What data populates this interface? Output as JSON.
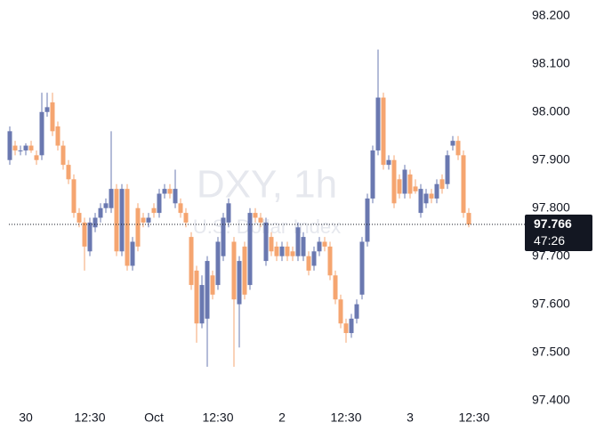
{
  "chart_data": {
    "type": "candlestick",
    "watermark": "DXY, 1h",
    "watermark_subtitle": "U.S. Dollar Index",
    "up_color": "#6a78b0",
    "down_color": "#f5a570",
    "ylim": [
      97.39,
      98.233
    ],
    "yticks": [
      {
        "value": 98.2,
        "label": "98.200"
      },
      {
        "value": 98.1,
        "label": "98.100"
      },
      {
        "value": 98.0,
        "label": "98.000"
      },
      {
        "value": 97.9,
        "label": "97.900"
      },
      {
        "value": 97.8,
        "label": "97.800"
      },
      {
        "value": 97.7,
        "label": "97.700"
      },
      {
        "value": 97.6,
        "label": "97.600"
      },
      {
        "value": 97.5,
        "label": "97.500"
      },
      {
        "value": 97.4,
        "label": "97.400"
      }
    ],
    "last_price": 97.766,
    "countdown": "47:26",
    "categories": [
      null,
      null,
      null,
      "30",
      null,
      null,
      null,
      null,
      null,
      null,
      null,
      null,
      null,
      null,
      null,
      "12:30",
      null,
      null,
      null,
      null,
      null,
      null,
      null,
      null,
      null,
      null,
      null,
      "Oct",
      null,
      null,
      null,
      null,
      null,
      null,
      null,
      null,
      null,
      null,
      null,
      "12:30",
      null,
      null,
      null,
      null,
      null,
      null,
      null,
      null,
      null,
      null,
      null,
      "2",
      null,
      null,
      null,
      null,
      null,
      null,
      null,
      null,
      null,
      null,
      null,
      "12:30",
      null,
      null,
      null,
      null,
      null,
      null,
      null,
      null,
      null,
      null,
      null,
      "3",
      null,
      null,
      null,
      null,
      null,
      null,
      null,
      null,
      null,
      null,
      null,
      "12:30"
    ],
    "open": [
      97.9,
      97.93,
      97.92,
      97.92,
      97.93,
      97.91,
      97.91,
      98.0,
      98.02,
      97.97,
      97.93,
      97.89,
      97.86,
      97.79,
      97.77,
      97.71,
      97.76,
      97.78,
      97.8,
      97.8,
      97.84,
      97.71,
      97.84,
      97.68,
      97.8,
      97.78,
      97.77,
      97.8,
      97.79,
      97.83,
      97.84,
      97.81,
      97.81,
      97.79,
      97.74,
      97.67,
      97.56,
      97.57,
      97.66,
      97.64,
      97.7,
      97.77,
      97.73,
      97.6,
      97.72,
      97.64,
      97.79,
      97.78,
      97.69,
      97.74,
      97.72,
      97.7,
      97.72,
      97.71,
      97.7,
      97.7,
      97.7,
      97.68,
      97.71,
      97.73,
      97.72,
      97.66,
      97.61,
      97.56,
      97.54,
      97.57,
      97.62,
      97.73,
      97.82,
      97.92,
      98.03,
      97.89,
      97.9,
      97.86,
      97.83,
      97.87,
      97.845,
      97.79,
      97.81,
      97.83,
      97.82,
      97.86,
      97.85,
      97.93,
      97.94,
      97.91,
      97.79,
      null
    ],
    "high": [
      97.97,
      97.94,
      97.93,
      97.935,
      97.94,
      97.92,
      98.04,
      98.04,
      98.04,
      97.98,
      97.94,
      97.9,
      97.87,
      97.8,
      97.78,
      97.78,
      97.79,
      97.81,
      97.82,
      97.96,
      97.85,
      97.85,
      97.85,
      97.74,
      97.81,
      97.79,
      97.79,
      97.81,
      97.84,
      97.85,
      97.85,
      97.88,
      97.82,
      97.8,
      97.75,
      97.68,
      97.66,
      97.7,
      97.67,
      97.74,
      97.79,
      97.82,
      97.74,
      97.7,
      97.73,
      97.8,
      97.8,
      97.79,
      97.78,
      97.75,
      97.73,
      97.73,
      97.73,
      97.72,
      97.77,
      97.75,
      97.71,
      97.72,
      97.74,
      97.74,
      97.73,
      97.67,
      97.62,
      97.57,
      97.58,
      97.61,
      97.74,
      97.83,
      97.93,
      98.13,
      98.04,
      97.91,
      97.91,
      97.87,
      97.89,
      97.88,
      97.86,
      97.85,
      97.84,
      97.84,
      97.86,
      97.87,
      97.92,
      97.95,
      97.95,
      97.92,
      97.8,
      null
    ],
    "low": [
      97.89,
      97.91,
      97.91,
      97.91,
      97.915,
      97.89,
      97.9,
      97.99,
      97.95,
      97.92,
      97.88,
      97.85,
      97.78,
      97.76,
      97.67,
      97.7,
      97.75,
      97.77,
      97.79,
      97.79,
      97.7,
      97.7,
      97.67,
      97.67,
      97.71,
      97.76,
      97.76,
      97.78,
      97.78,
      97.82,
      97.82,
      97.8,
      97.78,
      97.76,
      97.63,
      97.52,
      97.55,
      97.47,
      97.61,
      97.63,
      97.69,
      97.76,
      97.47,
      97.51,
      97.61,
      97.63,
      97.77,
      97.76,
      97.68,
      97.7,
      97.69,
      97.69,
      97.69,
      97.69,
      97.69,
      97.69,
      97.66,
      97.67,
      97.7,
      97.71,
      97.65,
      97.6,
      97.55,
      97.52,
      97.53,
      97.56,
      97.61,
      97.72,
      97.81,
      97.91,
      97.88,
      97.88,
      97.8,
      97.82,
      97.82,
      97.82,
      97.83,
      97.78,
      97.8,
      97.81,
      97.81,
      97.83,
      97.84,
      97.92,
      97.9,
      97.78,
      97.76,
      null
    ],
    "close": [
      97.96,
      97.92,
      97.92,
      97.93,
      97.92,
      97.9,
      98.0,
      98.01,
      97.96,
      97.93,
      97.89,
      97.86,
      97.79,
      97.77,
      97.72,
      97.77,
      97.78,
      97.8,
      97.81,
      97.84,
      97.71,
      97.84,
      97.68,
      97.73,
      97.72,
      97.77,
      97.78,
      97.79,
      97.83,
      97.84,
      97.83,
      97.84,
      97.79,
      97.77,
      97.64,
      97.56,
      97.64,
      97.69,
      97.62,
      97.73,
      97.78,
      97.81,
      97.61,
      97.69,
      97.62,
      97.79,
      97.78,
      97.77,
      97.77,
      97.71,
      97.7,
      97.72,
      97.7,
      97.7,
      97.76,
      97.74,
      97.67,
      97.71,
      97.73,
      97.72,
      97.66,
      97.61,
      97.56,
      97.54,
      97.57,
      97.6,
      97.73,
      97.82,
      97.92,
      98.03,
      97.89,
      97.9,
      97.81,
      97.83,
      97.88,
      97.83,
      97.835,
      97.84,
      97.83,
      97.82,
      97.85,
      97.84,
      97.91,
      97.94,
      97.91,
      97.79,
      97.766,
      null
    ]
  }
}
